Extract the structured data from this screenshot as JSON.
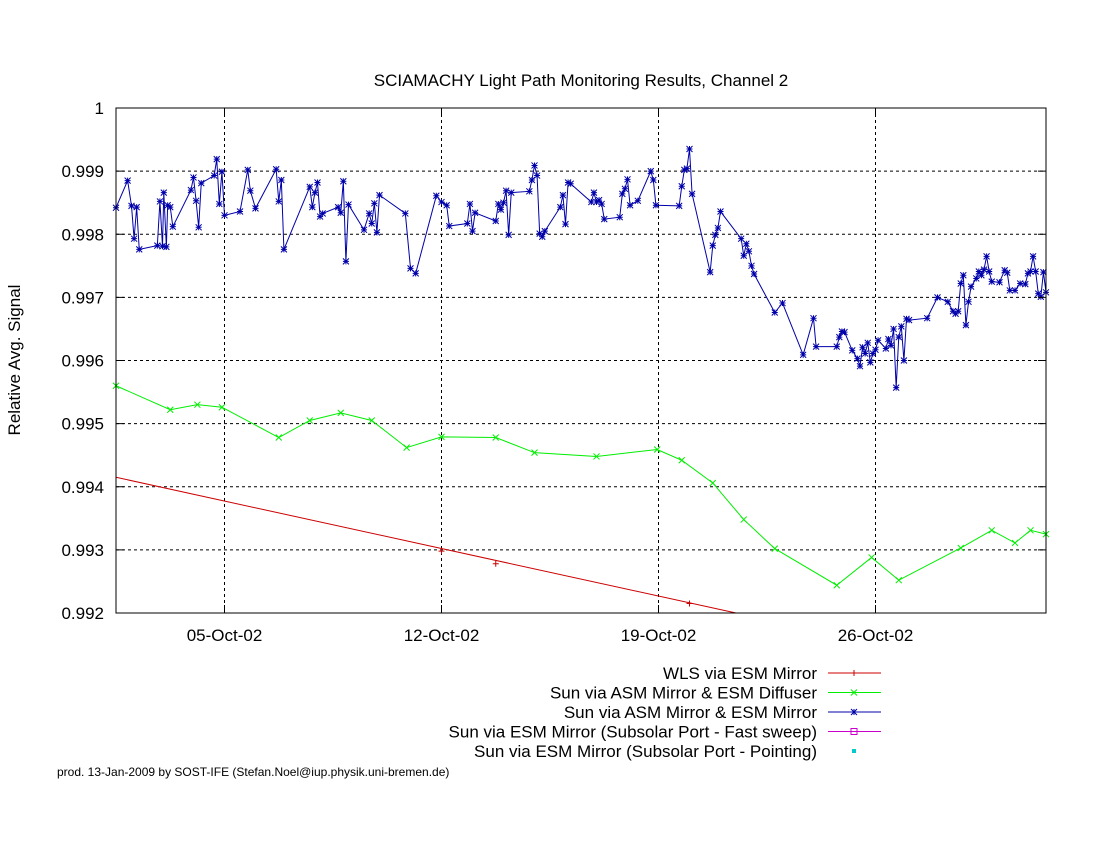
{
  "chart_data": {
    "type": "line",
    "title": "SCIAMACHY Light Path Monitoring Results, Channel 2",
    "ylabel": "Relative Avg. Signal",
    "xlabel": "",
    "xlim": [
      "2002-10-01T12:00",
      "2002-10-31T12:00"
    ],
    "ylim": [
      0.992,
      1.0
    ],
    "grid": true,
    "legend_position": "bottom-center",
    "x_ticks": [
      {
        "date": "2002-10-05T00:00",
        "label": "05-Oct-02"
      },
      {
        "date": "2002-10-12T00:00",
        "label": "12-Oct-02"
      },
      {
        "date": "2002-10-19T00:00",
        "label": "19-Oct-02"
      },
      {
        "date": "2002-10-26T00:00",
        "label": "26-Oct-02"
      }
    ],
    "y_ticks": [
      {
        "value": 0.992,
        "label": "0.992"
      },
      {
        "value": 0.993,
        "label": "0.993"
      },
      {
        "value": 0.994,
        "label": "0.994"
      },
      {
        "value": 0.995,
        "label": "0.995"
      },
      {
        "value": 0.996,
        "label": "0.996"
      },
      {
        "value": 0.997,
        "label": "0.997"
      },
      {
        "value": 0.998,
        "label": "0.998"
      },
      {
        "value": 0.999,
        "label": "0.999"
      },
      {
        "value": 1.0,
        "label": "1"
      }
    ],
    "series": [
      {
        "name": "WLS via ESM Mirror",
        "color": "#cc0000",
        "marker": "plus",
        "points": [
          [
            "2002-10-12T00:00",
            0.99298
          ],
          [
            "2002-10-13T18:00",
            0.99278
          ],
          [
            "2002-10-20T00:00",
            0.99215
          ]
        ],
        "line": [
          [
            "2002-10-01T12:00",
            0.99415
          ],
          [
            "2002-10-21T12:00",
            0.992
          ]
        ]
      },
      {
        "name": "Sun via ASM Mirror & ESM Diffuser",
        "color": "#00ee00",
        "marker": "x",
        "points": [
          [
            "2002-10-01T12:00",
            0.9956
          ],
          [
            "2002-10-03T06:00",
            0.99522
          ],
          [
            "2002-10-04T03:00",
            0.9953
          ],
          [
            "2002-10-04T22:00",
            0.99526
          ],
          [
            "2002-10-06T18:00",
            0.99478
          ],
          [
            "2002-10-07T18:00",
            0.99505
          ],
          [
            "2002-10-08T18:00",
            0.99517
          ],
          [
            "2002-10-09T18:00",
            0.99505
          ],
          [
            "2002-10-10T21:00",
            0.99462
          ],
          [
            "2002-10-12T00:00",
            0.99479
          ],
          [
            "2002-10-13T18:00",
            0.99478
          ],
          [
            "2002-10-15T00:00",
            0.99454
          ],
          [
            "2002-10-17T00:00",
            0.99448
          ],
          [
            "2002-10-18T23:00",
            0.99459
          ],
          [
            "2002-10-19T18:00",
            0.99442
          ],
          [
            "2002-10-20T18:00",
            0.99406
          ],
          [
            "2002-10-21T18:00",
            0.99348
          ],
          [
            "2002-10-22T18:00",
            0.99302
          ],
          [
            "2002-10-24T18:00",
            0.99244
          ],
          [
            "2002-10-25T21:00",
            0.99288
          ],
          [
            "2002-10-26T18:00",
            0.99252
          ],
          [
            "2002-10-28T18:00",
            0.99303
          ],
          [
            "2002-10-29T18:00",
            0.99331
          ],
          [
            "2002-10-30T12:00",
            0.99311
          ],
          [
            "2002-10-31T00:00",
            0.99331
          ],
          [
            "2002-10-31T12:00",
            0.99325
          ]
        ]
      },
      {
        "name": "Sun via ASM Mirror & ESM Mirror",
        "color": "#0000aa",
        "marker": "star",
        "points": [
          [
            "2002-10-01T12:00",
            0.99842
          ],
          [
            "2002-10-01T21:00",
            0.99885
          ],
          [
            "2002-10-02T00:00",
            0.99845
          ],
          [
            "2002-10-02T02:00",
            0.99793
          ],
          [
            "2002-10-02T04:00",
            0.99843
          ],
          [
            "2002-10-02T06:00",
            0.99776
          ],
          [
            "2002-10-02T20:00",
            0.99782
          ],
          [
            "2002-10-02T22:00",
            0.99852
          ],
          [
            "2002-10-03T00:00",
            0.99781
          ],
          [
            "2002-10-03T01:00",
            0.99866
          ],
          [
            "2002-10-03T03:00",
            0.9978
          ],
          [
            "2002-10-03T04:00",
            0.99846
          ],
          [
            "2002-10-03T06:00",
            0.99843
          ],
          [
            "2002-10-03T08:00",
            0.99812
          ],
          [
            "2002-10-03T22:00",
            0.9987
          ],
          [
            "2002-10-04T00:00",
            0.9989
          ],
          [
            "2002-10-04T02:00",
            0.99853
          ],
          [
            "2002-10-04T04:00",
            0.99811
          ],
          [
            "2002-10-04T06:00",
            0.99881
          ],
          [
            "2002-10-04T16:00",
            0.99893
          ],
          [
            "2002-10-04T18:00",
            0.99919
          ],
          [
            "2002-10-04T20:00",
            0.99848
          ],
          [
            "2002-10-04T22:00",
            0.99899
          ],
          [
            "2002-10-05T00:00",
            0.9983
          ],
          [
            "2002-10-05T12:00",
            0.99836
          ],
          [
            "2002-10-05T18:00",
            0.99902
          ],
          [
            "2002-10-05T20:00",
            0.99869
          ],
          [
            "2002-10-06T00:00",
            0.99841
          ],
          [
            "2002-10-06T16:00",
            0.99903
          ],
          [
            "2002-10-06T18:00",
            0.99852
          ],
          [
            "2002-10-06T20:00",
            0.99886
          ],
          [
            "2002-10-06T22:00",
            0.99776
          ],
          [
            "2002-10-07T18:00",
            0.99875
          ],
          [
            "2002-10-07T20:00",
            0.99843
          ],
          [
            "2002-10-07T22:00",
            0.99866
          ],
          [
            "2002-10-08T00:00",
            0.99882
          ],
          [
            "2002-10-08T02:00",
            0.99828
          ],
          [
            "2002-10-08T04:00",
            0.99833
          ],
          [
            "2002-10-08T16:00",
            0.99843
          ],
          [
            "2002-10-08T18:00",
            0.99834
          ],
          [
            "2002-10-08T20:00",
            0.99884
          ],
          [
            "2002-10-08T22:00",
            0.99757
          ],
          [
            "2002-10-09T00:00",
            0.99847
          ],
          [
            "2002-10-09T12:00",
            0.99807
          ],
          [
            "2002-10-09T16:00",
            0.99833
          ],
          [
            "2002-10-09T18:00",
            0.99817
          ],
          [
            "2002-10-09T20:00",
            0.99849
          ],
          [
            "2002-10-09T22:00",
            0.99803
          ],
          [
            "2002-10-10T00:00",
            0.99862
          ],
          [
            "2002-10-10T20:00",
            0.99833
          ],
          [
            "2002-10-11T00:00",
            0.99746
          ],
          [
            "2002-10-11T04:00",
            0.99738
          ],
          [
            "2002-10-11T20:00",
            0.99861
          ],
          [
            "2002-10-12T00:00",
            0.99851
          ],
          [
            "2002-10-12T04:00",
            0.99846
          ],
          [
            "2002-10-12T06:00",
            0.99813
          ],
          [
            "2002-10-12T20:00",
            0.99817
          ],
          [
            "2002-10-12T22:00",
            0.99848
          ],
          [
            "2002-10-13T00:00",
            0.99805
          ],
          [
            "2002-10-13T02:00",
            0.99834
          ],
          [
            "2002-10-13T18:00",
            0.99821
          ],
          [
            "2002-10-13T20:00",
            0.99848
          ],
          [
            "2002-10-13T22:00",
            0.99839
          ],
          [
            "2002-10-14T00:00",
            0.9985
          ],
          [
            "2002-10-14T02:00",
            0.99869
          ],
          [
            "2002-10-14T04:00",
            0.99799
          ],
          [
            "2002-10-14T06:00",
            0.99866
          ],
          [
            "2002-10-14T20:00",
            0.99868
          ],
          [
            "2002-10-14T22:00",
            0.99886
          ],
          [
            "2002-10-15T00:00",
            0.99909
          ],
          [
            "2002-10-15T02:00",
            0.99893
          ],
          [
            "2002-10-15T04:00",
            0.99801
          ],
          [
            "2002-10-15T06:00",
            0.99796
          ],
          [
            "2002-10-15T08:00",
            0.99805
          ],
          [
            "2002-10-15T20:00",
            0.99843
          ],
          [
            "2002-10-15T22:00",
            0.99862
          ],
          [
            "2002-10-16T00:00",
            0.99816
          ],
          [
            "2002-10-16T02:00",
            0.99882
          ],
          [
            "2002-10-16T04:00",
            0.9988
          ],
          [
            "2002-10-16T20:00",
            0.99851
          ],
          [
            "2002-10-16T22:00",
            0.99866
          ],
          [
            "2002-10-17T00:00",
            0.99851
          ],
          [
            "2002-10-17T02:00",
            0.99854
          ],
          [
            "2002-10-17T04:00",
            0.99848
          ],
          [
            "2002-10-17T06:00",
            0.99824
          ],
          [
            "2002-10-17T18:00",
            0.99827
          ],
          [
            "2002-10-17T20:00",
            0.99864
          ],
          [
            "2002-10-17T22:00",
            0.99872
          ],
          [
            "2002-10-18T00:00",
            0.99887
          ],
          [
            "2002-10-18T02:00",
            0.99846
          ],
          [
            "2002-10-18T08:00",
            0.99853
          ],
          [
            "2002-10-18T18:00",
            0.999
          ],
          [
            "2002-10-18T20:00",
            0.99886
          ],
          [
            "2002-10-18T22:00",
            0.99846
          ],
          [
            "2002-10-19T16:00",
            0.99845
          ],
          [
            "2002-10-19T18:00",
            0.99876
          ],
          [
            "2002-10-19T20:00",
            0.99902
          ],
          [
            "2002-10-19T22:00",
            0.99904
          ],
          [
            "2002-10-20T00:00",
            0.99935
          ],
          [
            "2002-10-20T02:00",
            0.99864
          ],
          [
            "2002-10-20T16:00",
            0.9974
          ],
          [
            "2002-10-20T18:00",
            0.99782
          ],
          [
            "2002-10-20T20:00",
            0.99799
          ],
          [
            "2002-10-20T22:00",
            0.9981
          ],
          [
            "2002-10-21T00:00",
            0.99836
          ],
          [
            "2002-10-21T16:00",
            0.99793
          ],
          [
            "2002-10-21T18:00",
            0.99766
          ],
          [
            "2002-10-21T20:00",
            0.99785
          ],
          [
            "2002-10-21T22:00",
            0.99773
          ],
          [
            "2002-10-22T00:00",
            0.9975
          ],
          [
            "2002-10-22T02:00",
            0.99737
          ],
          [
            "2002-10-22T18:00",
            0.99676
          ],
          [
            "2002-10-23T00:00",
            0.99691
          ],
          [
            "2002-10-23T16:00",
            0.99609
          ],
          [
            "2002-10-24T00:00",
            0.99667
          ],
          [
            "2002-10-24T02:00",
            0.99622
          ],
          [
            "2002-10-24T18:00",
            0.99622
          ],
          [
            "2002-10-24T20:00",
            0.99637
          ],
          [
            "2002-10-24T22:00",
            0.99646
          ],
          [
            "2002-10-25T00:00",
            0.99645
          ],
          [
            "2002-10-25T06:00",
            0.99616
          ],
          [
            "2002-10-25T10:00",
            0.99603
          ],
          [
            "2002-10-25T12:00",
            0.99591
          ],
          [
            "2002-10-25T14:00",
            0.99621
          ],
          [
            "2002-10-25T16:00",
            0.99611
          ],
          [
            "2002-10-25T18:00",
            0.99628
          ],
          [
            "2002-10-25T20:00",
            0.99597
          ],
          [
            "2002-10-25T22:00",
            0.99611
          ],
          [
            "2002-10-26T00:00",
            0.99617
          ],
          [
            "2002-10-26T02:00",
            0.99632
          ],
          [
            "2002-10-26T08:00",
            0.99619
          ],
          [
            "2002-10-26T10:00",
            0.99634
          ],
          [
            "2002-10-26T12:00",
            0.99624
          ],
          [
            "2002-10-26T14:00",
            0.9965
          ],
          [
            "2002-10-26T16:00",
            0.99557
          ],
          [
            "2002-10-26T18:00",
            0.99637
          ],
          [
            "2002-10-26T20:00",
            0.99654
          ],
          [
            "2002-10-26T22:00",
            0.996
          ],
          [
            "2002-10-27T00:00",
            0.99666
          ],
          [
            "2002-10-27T02:00",
            0.99664
          ],
          [
            "2002-10-27T16:00",
            0.99667
          ],
          [
            "2002-10-28T00:00",
            0.997
          ],
          [
            "2002-10-28T08:00",
            0.99693
          ],
          [
            "2002-10-28T12:00",
            0.99678
          ],
          [
            "2002-10-28T14:00",
            0.99674
          ],
          [
            "2002-10-28T16:00",
            0.99678
          ],
          [
            "2002-10-28T18:00",
            0.99722
          ],
          [
            "2002-10-28T20:00",
            0.99735
          ],
          [
            "2002-10-28T22:00",
            0.99656
          ],
          [
            "2002-10-29T00:00",
            0.99693
          ],
          [
            "2002-10-29T02:00",
            0.99717
          ],
          [
            "2002-10-29T06:00",
            0.9973
          ],
          [
            "2002-10-29T08:00",
            0.99741
          ],
          [
            "2002-10-29T10:00",
            0.99735
          ],
          [
            "2002-10-29T12:00",
            0.99744
          ],
          [
            "2002-10-29T14:00",
            0.99765
          ],
          [
            "2002-10-29T16:00",
            0.99741
          ],
          [
            "2002-10-29T18:00",
            0.99725
          ],
          [
            "2002-10-30T00:00",
            0.99724
          ],
          [
            "2002-10-30T04:00",
            0.99743
          ],
          [
            "2002-10-30T06:00",
            0.99739
          ],
          [
            "2002-10-30T08:00",
            0.99711
          ],
          [
            "2002-10-30T12:00",
            0.99711
          ],
          [
            "2002-10-30T16:00",
            0.99722
          ],
          [
            "2002-10-30T20:00",
            0.99721
          ],
          [
            "2002-10-30T22:00",
            0.99738
          ],
          [
            "2002-10-31T00:00",
            0.99741
          ],
          [
            "2002-10-31T02:00",
            0.99765
          ],
          [
            "2002-10-31T04:00",
            0.99741
          ],
          [
            "2002-10-31T06:00",
            0.99706
          ],
          [
            "2002-10-31T08:00",
            0.99701
          ],
          [
            "2002-10-31T10:00",
            0.9974
          ],
          [
            "2002-10-31T12:00",
            0.99708
          ]
        ]
      },
      {
        "name": "Sun via ESM Mirror (Subsolar Port - Fast sweep)",
        "color": "#cc00cc",
        "marker": "square",
        "points": []
      },
      {
        "name": "Sun via ESM Mirror (Subsolar Port - Pointing)",
        "color": "#00cccc",
        "marker": "dot",
        "points": []
      }
    ],
    "footer": "prod. 13-Jan-2009 by SOST-IFE (Stefan.Noel@iup.physik.uni-bremen.de)"
  }
}
